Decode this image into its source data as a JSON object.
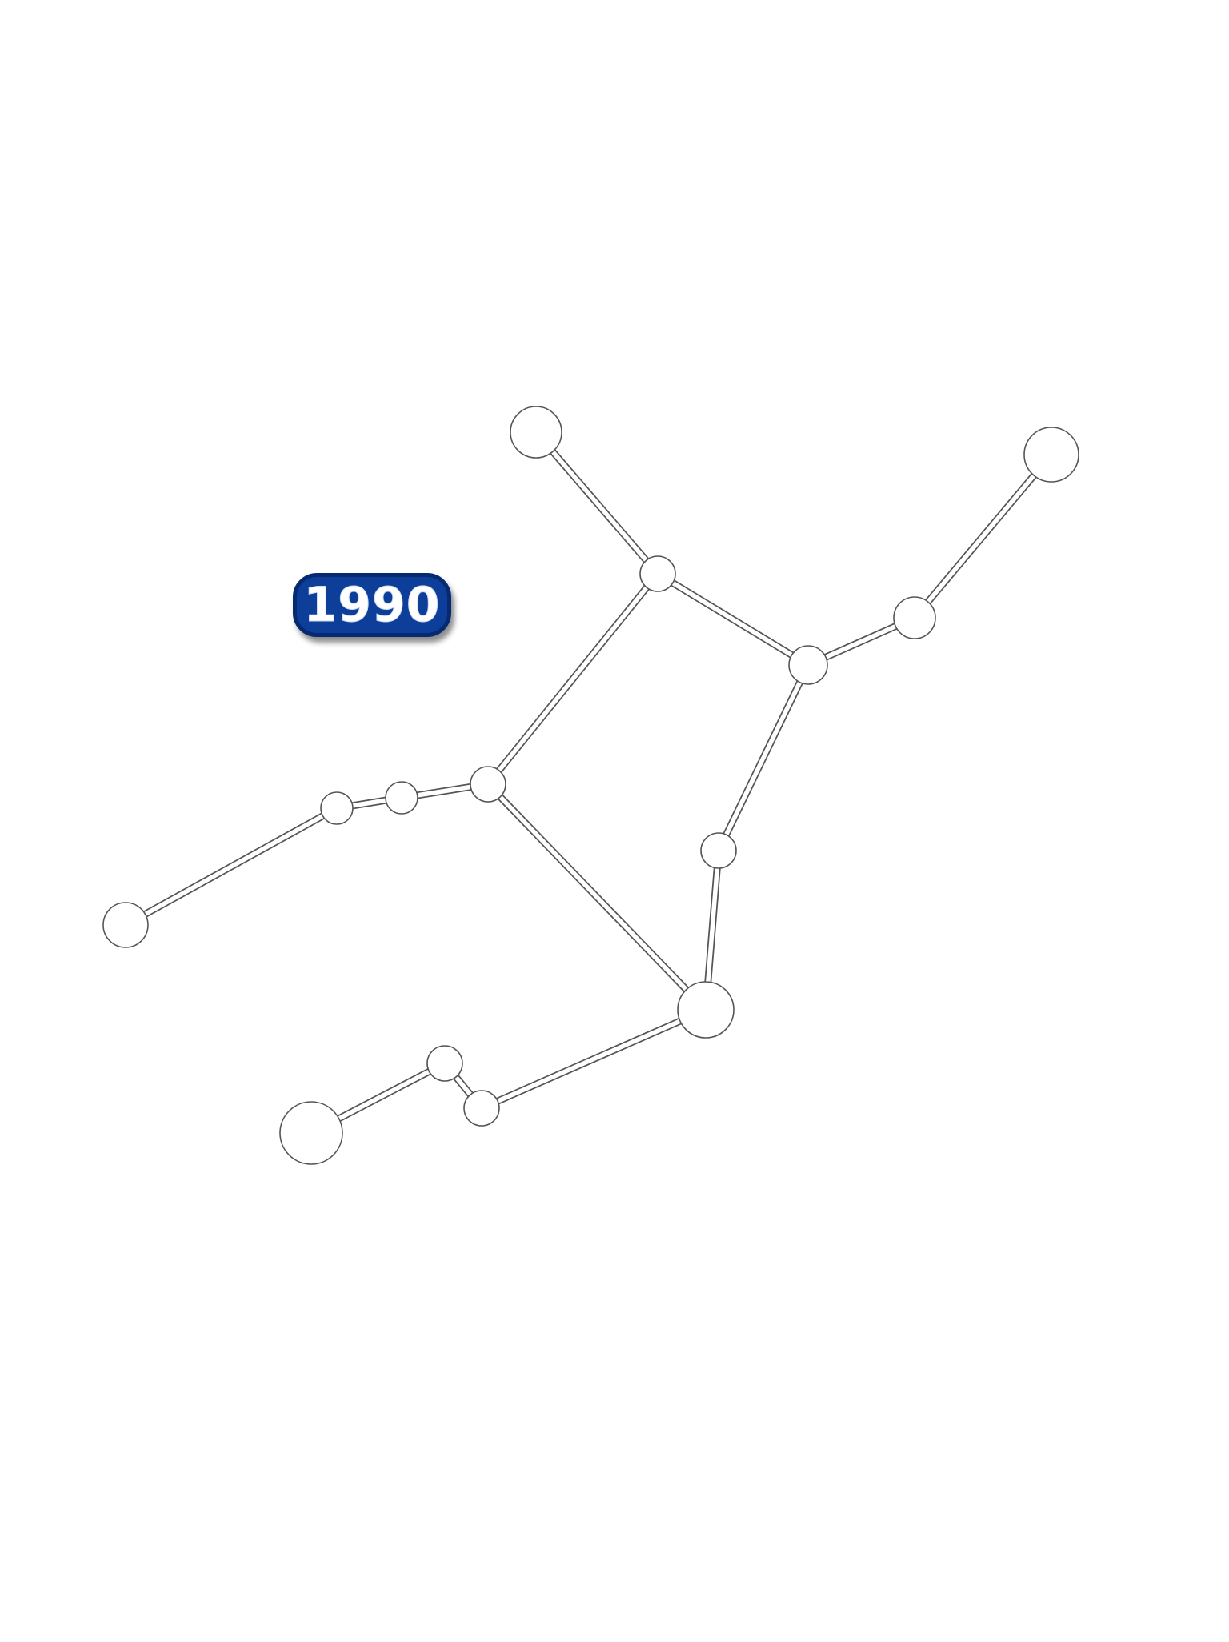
{
  "year_label": "1990",
  "colors": {
    "badge_fill": "#0d3f9a",
    "badge_border": "#062a72",
    "node_fill": "#ffffff",
    "outline": "#555555"
  },
  "nodes": [
    {
      "id": "n1",
      "name": "top-left-end-node"
    },
    {
      "id": "n2",
      "name": "upper-junction-node"
    },
    {
      "id": "n3",
      "name": "top-right-end-node"
    },
    {
      "id": "n4",
      "name": "right-mid-node"
    },
    {
      "id": "n5",
      "name": "right-junction-node"
    },
    {
      "id": "n6",
      "name": "center-left-junction-node"
    },
    {
      "id": "n7",
      "name": "left-small-node-a"
    },
    {
      "id": "n8",
      "name": "left-small-node-b"
    },
    {
      "id": "n9",
      "name": "far-left-end-node"
    },
    {
      "id": "n10",
      "name": "right-lower-node"
    },
    {
      "id": "n11",
      "name": "bottom-junction-node"
    },
    {
      "id": "n12",
      "name": "bottom-small-node-a"
    },
    {
      "id": "n13",
      "name": "bottom-small-node-b"
    },
    {
      "id": "n14",
      "name": "bottom-left-end-node"
    }
  ],
  "edges": [
    [
      "n1",
      "n2"
    ],
    [
      "n2",
      "n5"
    ],
    [
      "n3",
      "n4"
    ],
    [
      "n4",
      "n5"
    ],
    [
      "n2",
      "n6"
    ],
    [
      "n6",
      "n7"
    ],
    [
      "n7",
      "n8"
    ],
    [
      "n8",
      "n9"
    ],
    [
      "n5",
      "n10"
    ],
    [
      "n10",
      "n11"
    ],
    [
      "n6",
      "n11"
    ],
    [
      "n11",
      "n12"
    ],
    [
      "n12",
      "n13"
    ],
    [
      "n13",
      "n14"
    ]
  ]
}
